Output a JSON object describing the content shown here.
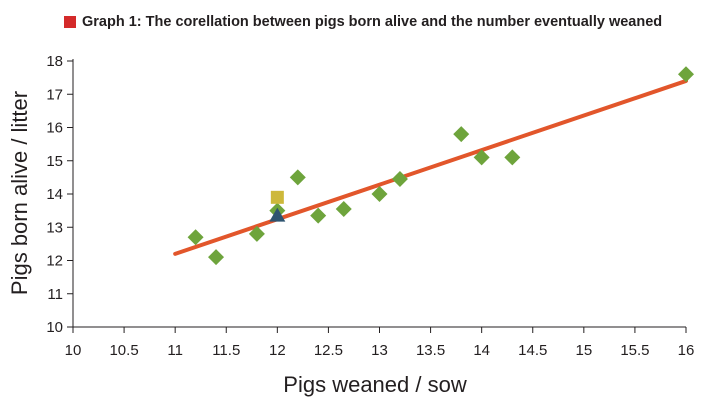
{
  "chart_data": {
    "type": "scatter",
    "title": "Graph 1: The corellation between pigs born alive and the number eventually weaned",
    "xlabel": "Pigs weaned / sow",
    "ylabel": "Pigs born alive / litter",
    "xlim": [
      10,
      16
    ],
    "ylim": [
      10,
      18
    ],
    "xticks": [
      "10",
      "10.5",
      "11",
      "11.5",
      "12",
      "12.5",
      "13",
      "13.5",
      "14",
      "14.5",
      "15",
      "15.5",
      "16"
    ],
    "yticks": [
      "10",
      "11",
      "12",
      "13",
      "14",
      "15",
      "16",
      "17",
      "18"
    ],
    "grid": false,
    "series": [
      {
        "marker": "diamond",
        "color": "#6ea43c",
        "points": [
          {
            "x": 11.2,
            "y": 12.7
          },
          {
            "x": 11.4,
            "y": 12.1
          },
          {
            "x": 11.8,
            "y": 12.8
          },
          {
            "x": 12.0,
            "y": 13.5
          },
          {
            "x": 12.2,
            "y": 14.5
          },
          {
            "x": 12.4,
            "y": 13.35
          },
          {
            "x": 12.65,
            "y": 13.55
          },
          {
            "x": 13.0,
            "y": 14.0
          },
          {
            "x": 13.2,
            "y": 14.45
          },
          {
            "x": 13.8,
            "y": 15.8
          },
          {
            "x": 14.0,
            "y": 15.1
          },
          {
            "x": 14.3,
            "y": 15.1
          },
          {
            "x": 16.0,
            "y": 17.6
          }
        ]
      },
      {
        "marker": "square",
        "color": "#cdb83a",
        "points": [
          {
            "x": 12.0,
            "y": 13.9
          }
        ]
      },
      {
        "marker": "triangle",
        "color": "#2e5470",
        "points": [
          {
            "x": 12.0,
            "y": 13.35
          }
        ]
      }
    ],
    "trendline": {
      "color": "#e2562b",
      "from": {
        "x": 11.0,
        "y": 12.2
      },
      "to": {
        "x": 16.0,
        "y": 17.4
      }
    },
    "title_marker_color": "#d42a2a"
  }
}
